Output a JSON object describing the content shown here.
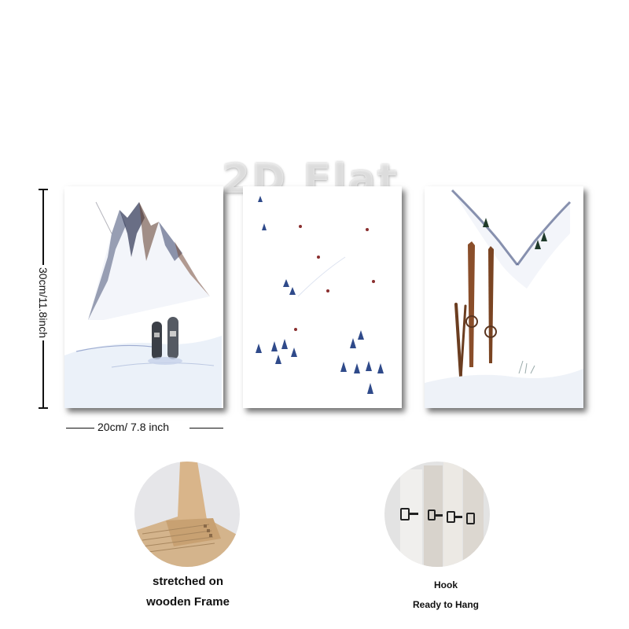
{
  "watermark": "2D Flat",
  "dimensions": {
    "height_label": "30cm/11.8inch",
    "width_label": "20cm/ 7.8 inch"
  },
  "panels": [
    {
      "subject": "mountain-with-snowboards"
    },
    {
      "subject": "ski-slope-with-skiers"
    },
    {
      "subject": "wooden-skis-and-poles"
    }
  ],
  "features": {
    "frame": {
      "line1": "stretched on",
      "line2": "wooden Frame"
    },
    "hook": {
      "line1": "Hook",
      "line2": "Ready to Hang"
    }
  },
  "colors": {
    "background": "#ffffff",
    "text": "#111111",
    "ice_blue": "#2a3d6b",
    "wood": "#8a4e2a",
    "frame_wood": "#d9b58a"
  }
}
